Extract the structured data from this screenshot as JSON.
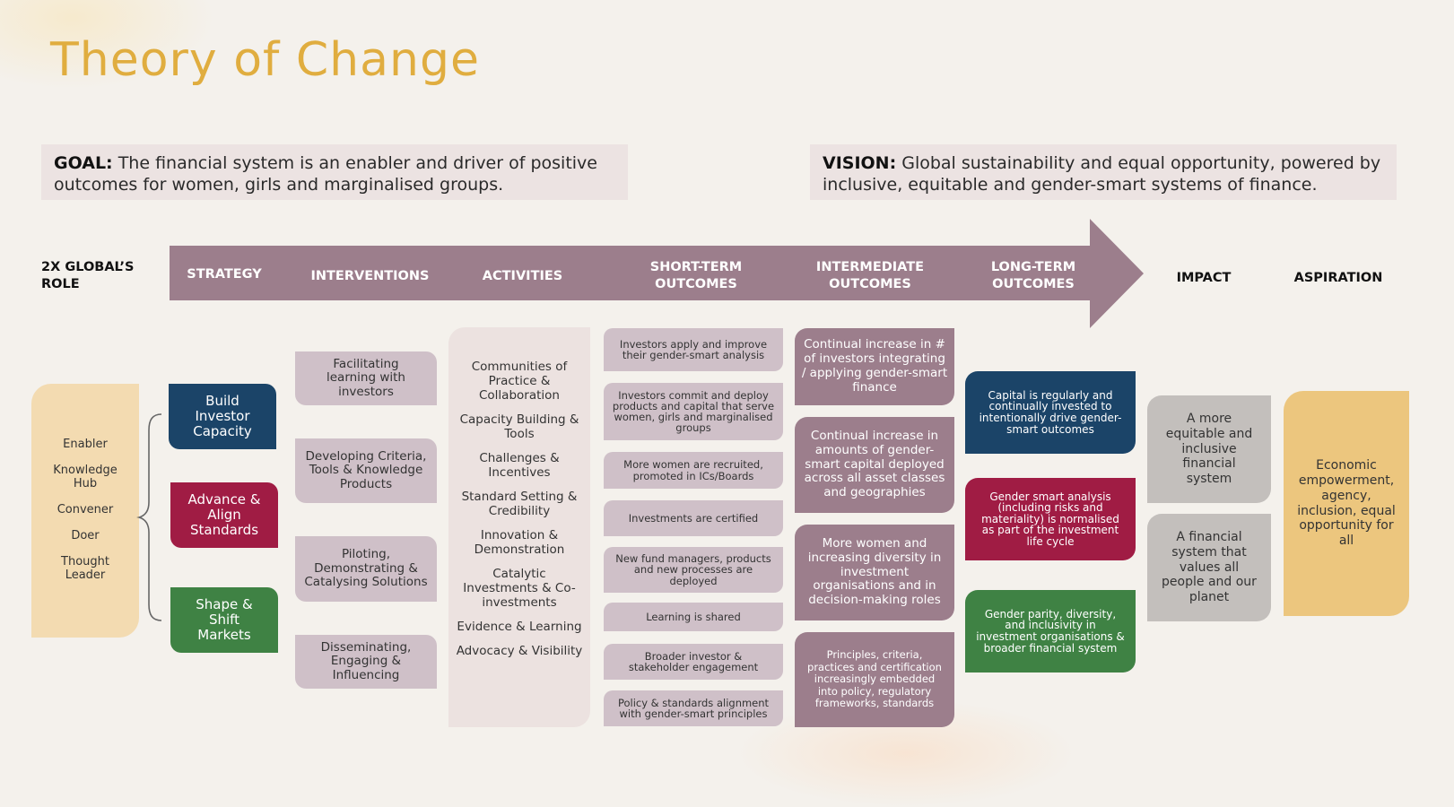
{
  "title": "Theory of Change",
  "goal": {
    "label": "GOAL:",
    "text": " The financial system is an enabler and driver of positive outcomes for women, girls and marginalised groups."
  },
  "vision": {
    "label": "VISION:",
    "text": " Global sustainability and equal opportunity, powered by inclusive, equitable and gender-smart systems of finance."
  },
  "columns": {
    "role": "2X GLOBAL’S ROLE",
    "strategy": "STRATEGY",
    "interventions": "INTERVENTIONS",
    "activities": "ACTIVITIES",
    "short_term": "SHORT-TERM OUTCOMES",
    "intermediate": "INTERMEDIATE OUTCOMES",
    "long_term": "LONG-TERM OUTCOMES",
    "impact": "IMPACT",
    "aspiration": "ASPIRATION"
  },
  "roles": [
    "Enabler",
    "Knowledge Hub",
    "Convener",
    "Doer",
    "Thought Leader"
  ],
  "strategies": [
    {
      "label": "Build Investor Capacity",
      "color": "#1b4468"
    },
    {
      "label": "Advance & Align Standards",
      "color": "#a01c44"
    },
    {
      "label": "Shape & Shift Markets",
      "color": "#3f8244"
    }
  ],
  "interventions": [
    "Facilitating learning with investors",
    "Developing Criteria, Tools & Knowledge Products",
    "Piloting, Demonstrating & Catalysing Solutions",
    "Disseminating, Engaging & Influencing"
  ],
  "activities": [
    "Communities of Practice & Collaboration",
    "Capacity Building & Tools",
    "Challenges & Incentives",
    "Standard Setting & Credibility",
    "Innovation & Demonstration",
    "Catalytic Investments & Co-investments",
    "Evidence & Learning",
    "Advocacy & Visibility"
  ],
  "short_term_outcomes": [
    "Investors apply and improve their gender-smart analysis",
    "Investors commit and deploy products and capital that serve women, girls and marginalised groups",
    "More women are recruited, promoted in ICs/Boards",
    "Investments are certified",
    "New fund managers, products and new processes are deployed",
    "Learning is shared",
    "Broader investor & stakeholder engagement",
    "Policy & standards alignment with gender-smart principles"
  ],
  "intermediate_outcomes": [
    "Continual increase in # of investors integrating / applying gender-smart finance",
    "Continual increase in amounts of gender-smart capital deployed across all asset classes and geographies",
    "More women and increasing diversity in investment organisations and in decision-making roles",
    "Principles, criteria, practices and certification increasingly embedded into policy, regulatory frameworks, standards"
  ],
  "long_term_outcomes": [
    {
      "text": "Capital is regularly and continually invested to intentionally drive gender-smart outcomes",
      "color": "#1b4468"
    },
    {
      "text": "Gender smart analysis (including risks and materiality) is normalised as part of the investment life cycle",
      "color": "#a01c44"
    },
    {
      "text": "Gender parity, diversity, and inclusivity in investment organisations & broader financial system",
      "color": "#3f8244"
    }
  ],
  "impact": [
    "A more equitable and inclusive financial system",
    "A financial system that values all people and our planet"
  ],
  "aspiration": "Economic empowerment, agency, inclusion, equal opportunity for all",
  "colors": {
    "title": "#e0ad3f",
    "arrow": "#9c7e8c",
    "statement_bg": "#ece3e2",
    "role_bg": "#f3dbb1",
    "light_mauve": "#cfc0c8",
    "impact_bg": "#c3bfbc",
    "aspiration_bg": "#ecc67e"
  }
}
